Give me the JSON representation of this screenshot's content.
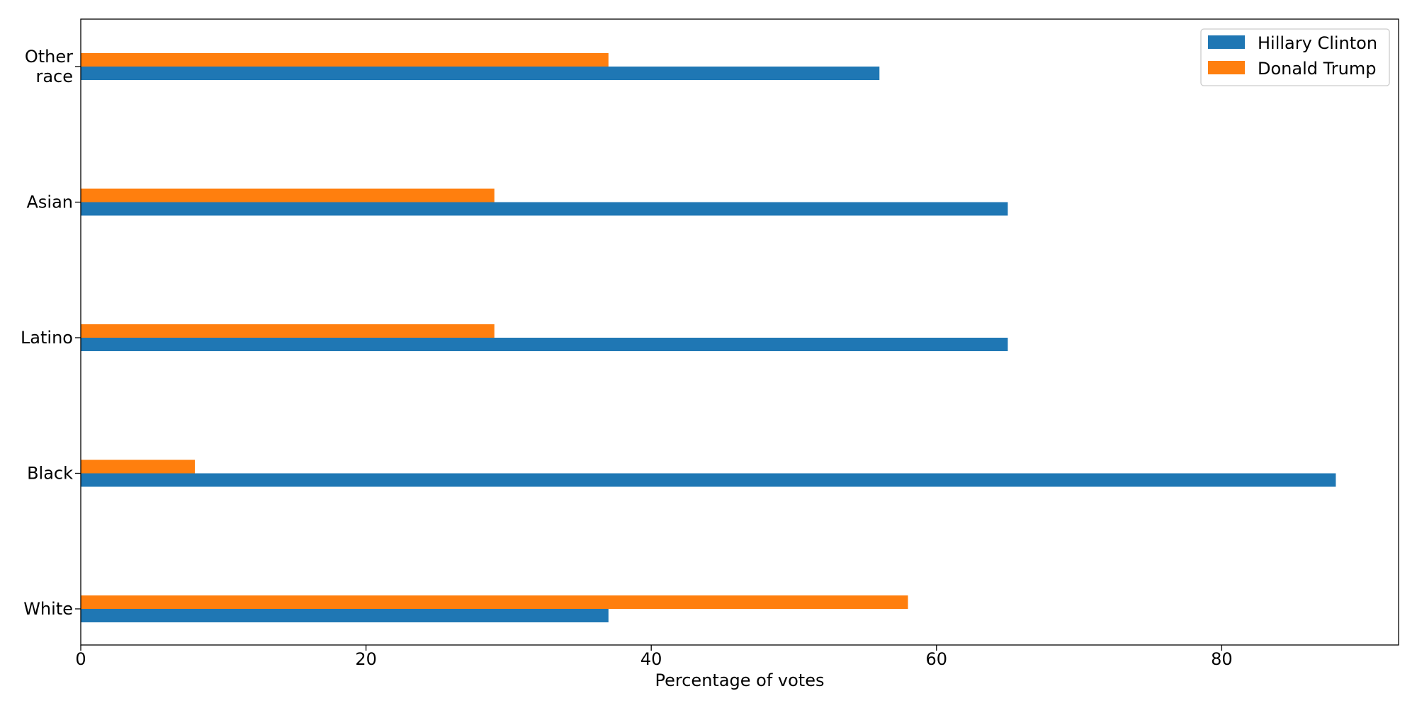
{
  "chart_data": {
    "type": "bar",
    "orientation": "horizontal",
    "categories": [
      "White",
      "Black",
      "Latino",
      "Asian",
      "Other race"
    ],
    "category_labels": [
      [
        "White"
      ],
      [
        "Black"
      ],
      [
        "Latino"
      ],
      [
        "Asian"
      ],
      [
        "Other",
        "race"
      ]
    ],
    "series": [
      {
        "name": "Hillary Clinton",
        "color": "#1f77b4",
        "values": [
          37,
          88,
          65,
          65,
          56
        ]
      },
      {
        "name": "Donald Trump",
        "color": "#ff7f0e",
        "values": [
          58,
          8,
          29,
          29,
          37
        ]
      }
    ],
    "title": "",
    "xlabel": "Percentage of votes",
    "ylabel": "",
    "xlim": [
      0,
      92.4
    ],
    "xticks": [
      0,
      20,
      40,
      60,
      80
    ],
    "grid": false,
    "legend_position": "top-right"
  }
}
